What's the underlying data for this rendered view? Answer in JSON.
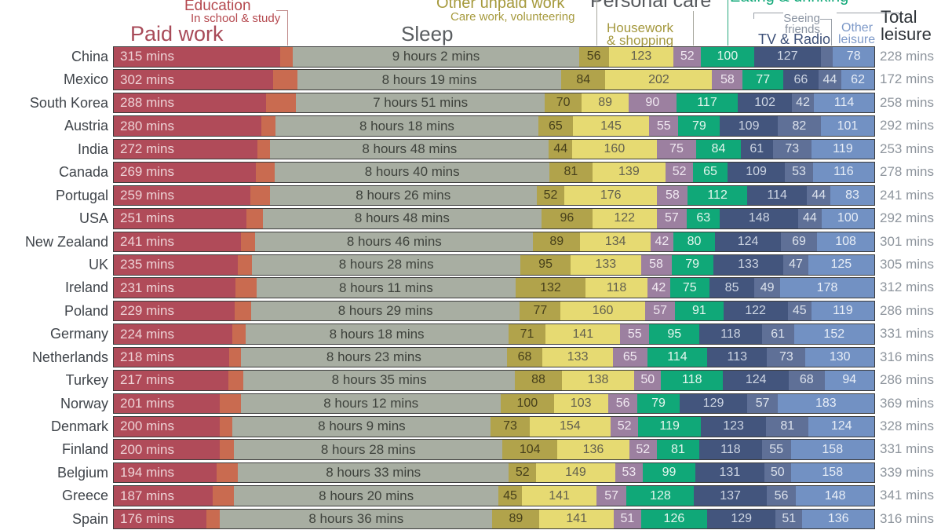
{
  "header": {
    "paid_work": "Paid work",
    "education": "Education",
    "education_sub": "In school & study",
    "sleep": "Sleep",
    "other_unpaid": "Other unpaid work",
    "other_unpaid_sub": "Care work, volunteering",
    "personal_care": "Personal care",
    "housework_1": "Housework",
    "housework_2": "& shopping",
    "eating": "Eating & drinking",
    "seeing_1": "Seeing",
    "seeing_2": "friends",
    "tv_radio": "TV & Radio",
    "other_leisure_1": "Other",
    "other_leisure_2": "leisure",
    "total_1": "Total",
    "total_2": "leisure"
  },
  "segments": [
    {
      "key": "paid",
      "name": "paid-work",
      "color": "#b04b59",
      "text_color": "#eed3d6",
      "label_type": "paid"
    },
    {
      "key": "education",
      "name": "education",
      "color": "#c96b50",
      "text_color": "#ffffff",
      "label_type": "none"
    },
    {
      "key": "sleep",
      "name": "sleep",
      "color": "#a8aea2",
      "text_color": "#3e423c",
      "label_type": "sleep"
    },
    {
      "key": "unpaid",
      "name": "other-unpaid-work",
      "color": "#b1a34b",
      "text_color": "#47401b",
      "label_type": "value"
    },
    {
      "key": "housework",
      "name": "housework-shopping",
      "color": "#e6da72",
      "text_color": "#62604f",
      "label_type": "value"
    },
    {
      "key": "personal",
      "name": "personal-care",
      "color": "#9c80a0",
      "text_color": "#f0e8f1",
      "label_type": "value"
    },
    {
      "key": "eating",
      "name": "eating-drinking",
      "color": "#10a878",
      "text_color": "#e4f6ee",
      "label_type": "value"
    },
    {
      "key": "tv",
      "name": "tv-radio",
      "color": "#43557d",
      "text_color": "#cdd5e3",
      "label_type": "value"
    },
    {
      "key": "friends",
      "name": "seeing-friends",
      "color": "#5f7097",
      "text_color": "#dce2ec",
      "label_type": "value"
    },
    {
      "key": "other",
      "name": "other-leisure",
      "color": "#7291c3",
      "text_color": "#e8eef7",
      "label_type": "value"
    }
  ],
  "chart_data": {
    "type": "bar",
    "orientation": "horizontal-stacked",
    "unit": "minutes per day",
    "total_minutes": 1440,
    "min_mins_for_label": 40,
    "legend": [
      "Paid work",
      "Education (In school & study)",
      "Sleep",
      "Other unpaid work (Care work, volunteering)",
      "Housework & shopping",
      "Personal care",
      "Eating & drinking",
      "TV & Radio",
      "Seeing friends",
      "Other leisure",
      "Total leisure"
    ],
    "rows": [
      {
        "country": "China",
        "paid": 315,
        "paid_label": "315 mins",
        "education": 24,
        "sleep": 542,
        "sleep_label": "9 hours 2 mins",
        "unpaid": 56,
        "housework": 123,
        "personal": 52,
        "eating": 100,
        "tv": 127,
        "friends": 23,
        "other": 78,
        "total_leisure": "228 mins"
      },
      {
        "country": "Mexico",
        "paid": 302,
        "paid_label": "302 mins",
        "education": 46,
        "sleep": 499,
        "sleep_label": "8 hours 19 mins",
        "unpaid": 84,
        "housework": 202,
        "personal": 58,
        "eating": 77,
        "tv": 66,
        "friends": 44,
        "other": 62,
        "total_leisure": "172 mins"
      },
      {
        "country": "South Korea",
        "paid": 288,
        "paid_label": "288 mins",
        "education": 57,
        "sleep": 471,
        "sleep_label": "7 hours 51 mins",
        "unpaid": 70,
        "housework": 89,
        "personal": 90,
        "eating": 117,
        "tv": 102,
        "friends": 42,
        "other": 114,
        "total_leisure": "258 mins"
      },
      {
        "country": "Austria",
        "paid": 280,
        "paid_label": "280 mins",
        "education": 26,
        "sleep": 498,
        "sleep_label": "8 hours 18 mins",
        "unpaid": 65,
        "housework": 145,
        "personal": 55,
        "eating": 79,
        "tv": 109,
        "friends": 82,
        "other": 101,
        "total_leisure": "292 mins"
      },
      {
        "country": "India",
        "paid": 272,
        "paid_label": "272 mins",
        "education": 24,
        "sleep": 528,
        "sleep_label": "8 hours 48 mins",
        "unpaid": 44,
        "housework": 160,
        "personal": 75,
        "eating": 84,
        "tv": 61,
        "friends": 73,
        "other": 119,
        "total_leisure": "253 mins"
      },
      {
        "country": "Canada",
        "paid": 269,
        "paid_label": "269 mins",
        "education": 36,
        "sleep": 520,
        "sleep_label": "8 hours 40 mins",
        "unpaid": 81,
        "housework": 139,
        "personal": 52,
        "eating": 65,
        "tv": 109,
        "friends": 53,
        "other": 116,
        "total_leisure": "278 mins"
      },
      {
        "country": "Portugal",
        "paid": 259,
        "paid_label": "259 mins",
        "education": 36,
        "sleep": 506,
        "sleep_label": "8 hours 26 mins",
        "unpaid": 52,
        "housework": 176,
        "personal": 58,
        "eating": 112,
        "tv": 114,
        "friends": 44,
        "other": 83,
        "total_leisure": "241 mins"
      },
      {
        "country": "USA",
        "paid": 251,
        "paid_label": "251 mins",
        "education": 31,
        "sleep": 528,
        "sleep_label": "8 hours 48 mins",
        "unpaid": 96,
        "housework": 122,
        "personal": 57,
        "eating": 63,
        "tv": 148,
        "friends": 44,
        "other": 100,
        "total_leisure": "292 mins"
      },
      {
        "country": "New Zealand",
        "paid": 241,
        "paid_label": "241 mins",
        "education": 27,
        "sleep": 526,
        "sleep_label": "8 hours 46 mins",
        "unpaid": 89,
        "housework": 134,
        "personal": 42,
        "eating": 80,
        "tv": 124,
        "friends": 69,
        "other": 108,
        "total_leisure": "301 mins"
      },
      {
        "country": "UK",
        "paid": 235,
        "paid_label": "235 mins",
        "education": 27,
        "sleep": 508,
        "sleep_label": "8 hours 28 mins",
        "unpaid": 95,
        "housework": 133,
        "personal": 58,
        "eating": 79,
        "tv": 133,
        "friends": 47,
        "other": 125,
        "total_leisure": "305 mins"
      },
      {
        "country": "Ireland",
        "paid": 231,
        "paid_label": "231 mins",
        "education": 39,
        "sleep": 491,
        "sleep_label": "8 hours 11 mins",
        "unpaid": 132,
        "housework": 118,
        "personal": 42,
        "eating": 75,
        "tv": 85,
        "friends": 49,
        "other": 178,
        "total_leisure": "312 mins"
      },
      {
        "country": "Poland",
        "paid": 229,
        "paid_label": "229 mins",
        "education": 31,
        "sleep": 509,
        "sleep_label": "8 hours 29 mins",
        "unpaid": 77,
        "housework": 160,
        "personal": 57,
        "eating": 91,
        "tv": 122,
        "friends": 45,
        "other": 119,
        "total_leisure": "286 mins"
      },
      {
        "country": "Germany",
        "paid": 224,
        "paid_label": "224 mins",
        "education": 25,
        "sleep": 498,
        "sleep_label": "8 hours 18 mins",
        "unpaid": 71,
        "housework": 141,
        "personal": 55,
        "eating": 95,
        "tv": 118,
        "friends": 61,
        "other": 152,
        "total_leisure": "331 mins"
      },
      {
        "country": "Netherlands",
        "paid": 218,
        "paid_label": "218 mins",
        "education": 23,
        "sleep": 503,
        "sleep_label": "8 hours 23 mins",
        "unpaid": 68,
        "housework": 133,
        "personal": 65,
        "eating": 114,
        "tv": 113,
        "friends": 73,
        "other": 130,
        "total_leisure": "316 mins"
      },
      {
        "country": "Turkey",
        "paid": 217,
        "paid_label": "217 mins",
        "education": 28,
        "sleep": 515,
        "sleep_label": "8 hours 35 mins",
        "unpaid": 88,
        "housework": 138,
        "personal": 50,
        "eating": 118,
        "tv": 124,
        "friends": 68,
        "other": 94,
        "total_leisure": "286 mins"
      },
      {
        "country": "Norway",
        "paid": 201,
        "paid_label": "201 mins",
        "education": 40,
        "sleep": 492,
        "sleep_label": "8 hours 12 mins",
        "unpaid": 100,
        "housework": 103,
        "personal": 56,
        "eating": 79,
        "tv": 129,
        "friends": 57,
        "other": 183,
        "total_leisure": "369 mins"
      },
      {
        "country": "Denmark",
        "paid": 200,
        "paid_label": "200 mins",
        "education": 25,
        "sleep": 489,
        "sleep_label": "8 hours 9 mins",
        "unpaid": 73,
        "housework": 154,
        "personal": 52,
        "eating": 119,
        "tv": 123,
        "friends": 81,
        "other": 124,
        "total_leisure": "328 mins"
      },
      {
        "country": "Finland",
        "paid": 200,
        "paid_label": "200 mins",
        "education": 28,
        "sleep": 508,
        "sleep_label": "8 hours 28 mins",
        "unpaid": 104,
        "housework": 136,
        "personal": 52,
        "eating": 81,
        "tv": 118,
        "friends": 55,
        "other": 158,
        "total_leisure": "331 mins"
      },
      {
        "country": "Belgium",
        "paid": 194,
        "paid_label": "194 mins",
        "education": 41,
        "sleep": 513,
        "sleep_label": "8 hours 33 mins",
        "unpaid": 52,
        "housework": 149,
        "personal": 53,
        "eating": 99,
        "tv": 131,
        "friends": 50,
        "other": 158,
        "total_leisure": "339 mins"
      },
      {
        "country": "Greece",
        "paid": 187,
        "paid_label": "187 mins",
        "education": 41,
        "sleep": 500,
        "sleep_label": "8 hours 20 mins",
        "unpaid": 45,
        "housework": 141,
        "personal": 57,
        "eating": 128,
        "tv": 137,
        "friends": 56,
        "other": 148,
        "total_leisure": "341 mins"
      },
      {
        "country": "Spain",
        "paid": 176,
        "paid_label": "176 mins",
        "education": 25,
        "sleep": 516,
        "sleep_label": "8 hours 36 mins",
        "unpaid": 89,
        "housework": 141,
        "personal": 51,
        "eating": 126,
        "tv": 129,
        "friends": 51,
        "other": 136,
        "total_leisure": "316 mins"
      }
    ]
  }
}
